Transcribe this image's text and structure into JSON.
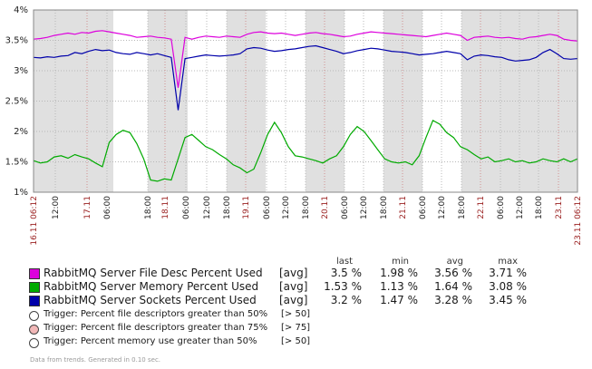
{
  "chart_data": {
    "type": "line",
    "ylim": [
      1,
      4
    ],
    "y_ticks": [
      "1%",
      "1.5%",
      "2%",
      "2.5%",
      "3%",
      "3.5%",
      "4%"
    ],
    "x_ticks": [
      {
        "label": "16.11 06:12",
        "red": true
      },
      {
        "label": "12:00",
        "red": false
      },
      {
        "label": "17.11",
        "red": true
      },
      {
        "label": "06:00",
        "red": false
      },
      {
        "label": "18:00",
        "red": false
      },
      {
        "label": "18.11",
        "red": true
      },
      {
        "label": "06:00",
        "red": false
      },
      {
        "label": "12:00",
        "red": false
      },
      {
        "label": "18:00",
        "red": false
      },
      {
        "label": "19.11",
        "red": true
      },
      {
        "label": "06:00",
        "red": false
      },
      {
        "label": "12:00",
        "red": false
      },
      {
        "label": "18:00",
        "red": false
      },
      {
        "label": "20.11",
        "red": true
      },
      {
        "label": "06:00",
        "red": false
      },
      {
        "label": "12:00",
        "red": false
      },
      {
        "label": "18:00",
        "red": false
      },
      {
        "label": "21.11",
        "red": true
      },
      {
        "label": "06:00",
        "red": false
      },
      {
        "label": "12:00",
        "red": false
      },
      {
        "label": "18:00",
        "red": false
      },
      {
        "label": "22.11",
        "red": true
      },
      {
        "label": "06:00",
        "red": false
      },
      {
        "label": "12:00",
        "red": false
      },
      {
        "label": "18:00",
        "red": false
      },
      {
        "label": "23.11",
        "red": true
      },
      {
        "label": "23.11 06:12",
        "red": true
      }
    ],
    "series": [
      {
        "name": "RabbitMQ Server File Desc Percent Used",
        "color": "#dd00dd",
        "values": [
          3.52,
          3.53,
          3.55,
          3.58,
          3.6,
          3.62,
          3.6,
          3.63,
          3.62,
          3.65,
          3.66,
          3.64,
          3.62,
          3.6,
          3.58,
          3.55,
          3.56,
          3.57,
          3.55,
          3.54,
          3.52,
          2.72,
          3.55,
          3.52,
          3.55,
          3.57,
          3.56,
          3.55,
          3.57,
          3.56,
          3.55,
          3.6,
          3.63,
          3.64,
          3.62,
          3.61,
          3.62,
          3.6,
          3.58,
          3.6,
          3.62,
          3.63,
          3.61,
          3.6,
          3.58,
          3.56,
          3.57,
          3.6,
          3.62,
          3.64,
          3.63,
          3.62,
          3.61,
          3.6,
          3.59,
          3.58,
          3.57,
          3.56,
          3.58,
          3.6,
          3.62,
          3.6,
          3.58,
          3.5,
          3.55,
          3.56,
          3.57,
          3.55,
          3.54,
          3.55,
          3.53,
          3.52,
          3.55,
          3.56,
          3.58,
          3.6,
          3.58,
          3.52,
          3.5,
          3.49
        ]
      },
      {
        "name": "RabbitMQ Server Memory Percent Used",
        "color": "#00aa00",
        "values": [
          1.52,
          1.48,
          1.5,
          1.58,
          1.6,
          1.56,
          1.62,
          1.58,
          1.55,
          1.48,
          1.42,
          1.82,
          1.95,
          2.02,
          1.98,
          1.8,
          1.55,
          1.2,
          1.18,
          1.22,
          1.2,
          1.55,
          1.9,
          1.95,
          1.85,
          1.75,
          1.7,
          1.62,
          1.55,
          1.45,
          1.4,
          1.32,
          1.38,
          1.65,
          1.95,
          2.15,
          1.98,
          1.75,
          1.6,
          1.58,
          1.55,
          1.52,
          1.48,
          1.55,
          1.6,
          1.75,
          1.95,
          2.08,
          2.0,
          1.85,
          1.7,
          1.55,
          1.5,
          1.48,
          1.5,
          1.45,
          1.6,
          1.9,
          2.18,
          2.12,
          1.98,
          1.9,
          1.75,
          1.7,
          1.62,
          1.55,
          1.58,
          1.5,
          1.52,
          1.55,
          1.5,
          1.52,
          1.48,
          1.5,
          1.55,
          1.52,
          1.5,
          1.55,
          1.5,
          1.55
        ]
      },
      {
        "name": "RabbitMQ Server Sockets Percent Used",
        "color": "#0000aa",
        "values": [
          3.22,
          3.21,
          3.23,
          3.22,
          3.24,
          3.25,
          3.3,
          3.28,
          3.32,
          3.35,
          3.33,
          3.34,
          3.3,
          3.28,
          3.27,
          3.3,
          3.28,
          3.26,
          3.28,
          3.25,
          3.22,
          2.35,
          3.2,
          3.22,
          3.24,
          3.26,
          3.25,
          3.24,
          3.25,
          3.26,
          3.28,
          3.36,
          3.38,
          3.37,
          3.34,
          3.32,
          3.33,
          3.35,
          3.36,
          3.38,
          3.4,
          3.41,
          3.38,
          3.35,
          3.32,
          3.28,
          3.3,
          3.33,
          3.35,
          3.37,
          3.36,
          3.34,
          3.32,
          3.31,
          3.3,
          3.28,
          3.26,
          3.27,
          3.28,
          3.3,
          3.32,
          3.3,
          3.28,
          3.18,
          3.24,
          3.26,
          3.25,
          3.23,
          3.22,
          3.18,
          3.16,
          3.17,
          3.18,
          3.22,
          3.3,
          3.35,
          3.28,
          3.2,
          3.19,
          3.2
        ]
      }
    ]
  },
  "legend": {
    "headers": {
      "last": "last",
      "min": "min",
      "avg": "avg",
      "max": "max"
    },
    "items": [
      {
        "name": "RabbitMQ Server File Desc Percent Used",
        "color": "#dd00dd",
        "func": "[avg]",
        "last": "3.5 %",
        "min": "1.98 %",
        "avg": "3.56 %",
        "max": "3.71 %"
      },
      {
        "name": "RabbitMQ Server Memory Percent Used",
        "color": "#00aa00",
        "func": "[avg]",
        "last": "1.53 %",
        "min": "1.13 %",
        "avg": "1.64 %",
        "max": "3.08 %"
      },
      {
        "name": "RabbitMQ Server Sockets Percent Used",
        "color": "#0000aa",
        "func": "[avg]",
        "last": "3.2 %",
        "min": "1.47 %",
        "avg": "3.28 %",
        "max": "3.45 %"
      }
    ],
    "triggers": [
      {
        "label": "Trigger: Percent file descriptors greater than 50%",
        "value": "[> 50]",
        "color": "#ffffff"
      },
      {
        "label": "Trigger: Percent file descriptors greater than 75%",
        "value": "[> 75]",
        "color": "#f2b8b8"
      },
      {
        "label": "Trigger: Percent memory use greater than 50%",
        "value": "[> 50]",
        "color": "#ffffff"
      }
    ]
  },
  "footer": "Data from trends. Generated in 0.10 sec."
}
